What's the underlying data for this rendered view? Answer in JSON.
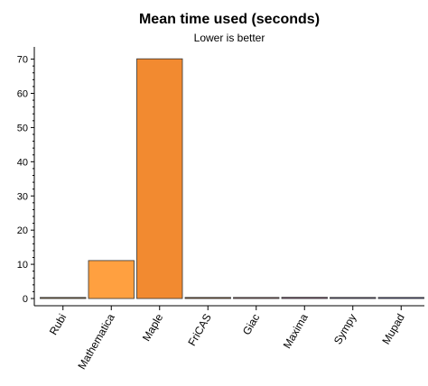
{
  "chart_data": {
    "type": "bar",
    "title": "Mean time used (seconds)",
    "subtitle": "Lower is better",
    "xlabel": "",
    "ylabel": "",
    "categories": [
      "Rubi",
      "Mathematica",
      "Maple",
      "FriCAS",
      "Giac",
      "Maxima",
      "Sympy",
      "Mupad"
    ],
    "values": [
      0.25,
      11.1,
      70.1,
      0.3,
      0.15,
      0.35,
      0.1,
      0.3
    ],
    "colors": [
      "#8a6d3b",
      "#ffa040",
      "#f28a30",
      "#8a5a2a",
      "#8a5a5a",
      "#7a4a6a",
      "#5a4a7a",
      "#4a4a8a"
    ],
    "ylim": [
      0,
      72
    ],
    "yticks": [
      0,
      10,
      20,
      30,
      40,
      50,
      60,
      70
    ],
    "grid": false,
    "legend": "none"
  }
}
